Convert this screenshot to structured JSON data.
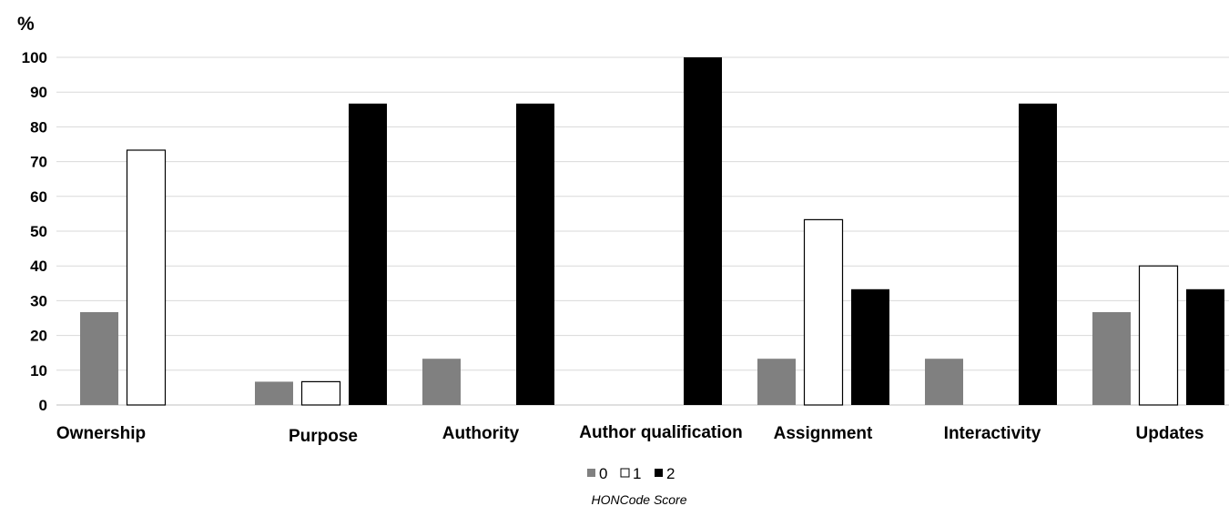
{
  "chart_data": {
    "type": "bar",
    "ylabel": "%",
    "xlabel": "HONCode Score",
    "ylim": [
      0,
      100
    ],
    "yticks": [
      0,
      10,
      20,
      30,
      40,
      50,
      60,
      70,
      80,
      90,
      100
    ],
    "grid": true,
    "legend_position": "bottom",
    "categories": [
      "Ownership",
      "Purpose",
      "Authority",
      "Author qualification",
      "Assignment",
      "Interactivity",
      "Updates"
    ],
    "series": [
      {
        "name": "0",
        "color": "#808080",
        "values": [
          26.7,
          6.7,
          13.3,
          0,
          13.3,
          13.3,
          26.7
        ]
      },
      {
        "name": "1",
        "color": "#ffffff",
        "values": [
          73.3,
          6.7,
          0,
          0,
          53.3,
          0,
          40
        ]
      },
      {
        "name": "2",
        "color": "#000000",
        "values": [
          0,
          86.7,
          86.7,
          100,
          33.3,
          86.7,
          33.3
        ]
      }
    ]
  }
}
